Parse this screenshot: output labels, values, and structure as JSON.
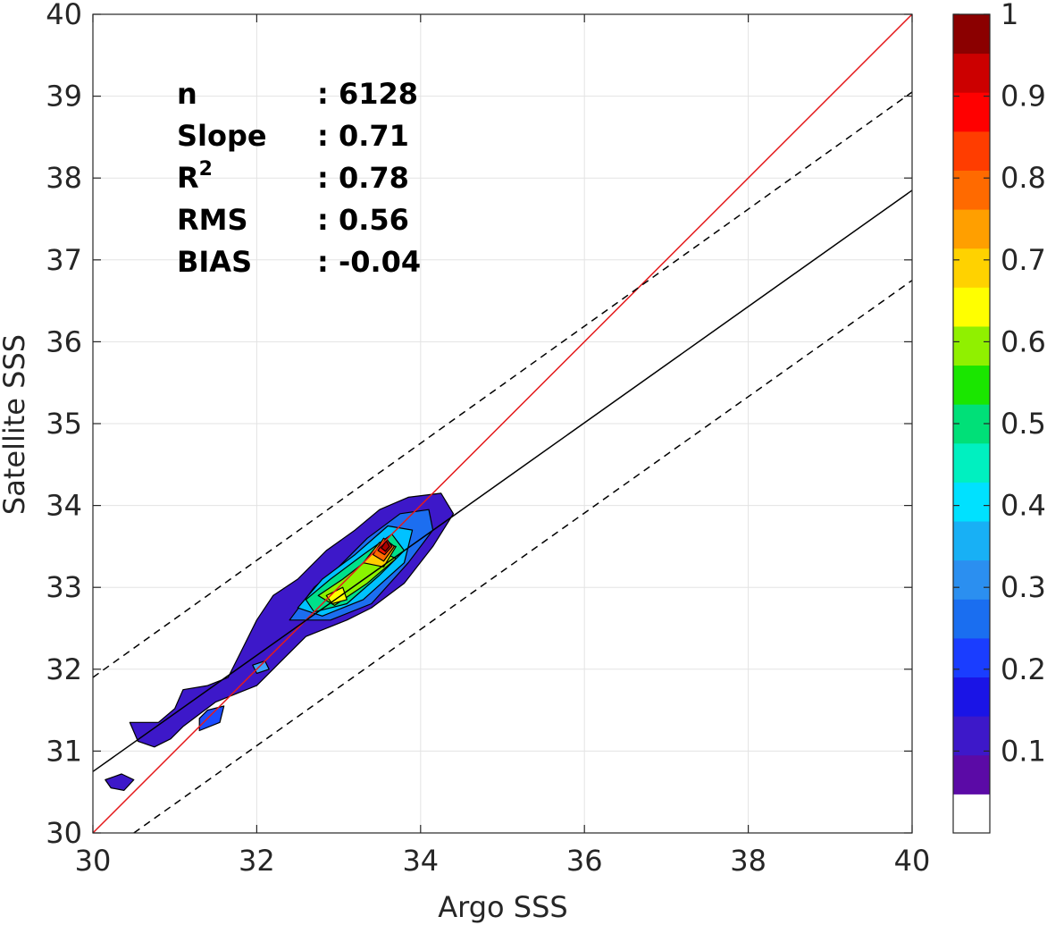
{
  "chart_data": {
    "type": "scatter",
    "subtype": "density-contour",
    "xlabel": "Argo SSS",
    "ylabel": "Satellite SSS",
    "xlim": [
      30,
      40
    ],
    "ylim": [
      30,
      40
    ],
    "xticks": [
      30,
      32,
      34,
      36,
      38,
      40
    ],
    "yticks": [
      30,
      31,
      32,
      33,
      34,
      35,
      36,
      37,
      38,
      39,
      40
    ],
    "grid": true,
    "stats": [
      {
        "label": "n",
        "value": ": 6128"
      },
      {
        "label": "Slope",
        "value": ": 0.71"
      },
      {
        "label": "R",
        "sup": "2",
        "value": ": 0.78"
      },
      {
        "label": "RMS",
        "value": ": 0.56"
      },
      {
        "label": "BIAS",
        "value": ": -0.04"
      }
    ],
    "reference_lines": [
      {
        "role": "one-to-one",
        "color": "#e41a1c",
        "x": [
          30,
          40
        ],
        "y": [
          30,
          40
        ]
      },
      {
        "role": "regression",
        "color": "#000000",
        "x": [
          30,
          40
        ],
        "y": [
          30.75,
          37.85
        ]
      },
      {
        "role": "upper-bound",
        "color": "#000000",
        "style": "dashed",
        "x": [
          30,
          40
        ],
        "y": [
          31.9,
          39.05
        ]
      },
      {
        "role": "lower-bound",
        "color": "#000000",
        "style": "dashed",
        "x": [
          30.5,
          40
        ],
        "y": [
          30,
          36.75
        ]
      }
    ],
    "density_contours": [
      {
        "level": 0.05,
        "color": "#3d18c9",
        "points": [
          [
            30.15,
            30.65
          ],
          [
            30.35,
            30.72
          ],
          [
            30.5,
            30.65
          ],
          [
            30.38,
            30.52
          ],
          [
            30.22,
            30.55
          ]
        ]
      },
      {
        "level": 0.05,
        "color": "#3d18c9",
        "points": [
          [
            30.45,
            31.35
          ],
          [
            30.8,
            31.35
          ],
          [
            31.0,
            31.52
          ],
          [
            31.1,
            31.75
          ],
          [
            31.4,
            31.8
          ],
          [
            31.65,
            31.9
          ],
          [
            31.8,
            32.2
          ],
          [
            32.0,
            32.6
          ],
          [
            32.2,
            32.9
          ],
          [
            32.5,
            33.1
          ],
          [
            32.85,
            33.45
          ],
          [
            33.2,
            33.7
          ],
          [
            33.5,
            33.95
          ],
          [
            33.85,
            34.1
          ],
          [
            34.25,
            34.15
          ],
          [
            34.4,
            33.9
          ],
          [
            34.15,
            33.5
          ],
          [
            33.8,
            33.05
          ],
          [
            33.4,
            32.75
          ],
          [
            33.1,
            32.6
          ],
          [
            32.6,
            32.4
          ],
          [
            32.3,
            32.1
          ],
          [
            32.0,
            31.8
          ],
          [
            31.5,
            31.6
          ],
          [
            31.1,
            31.3
          ],
          [
            30.95,
            31.15
          ],
          [
            30.75,
            31.05
          ],
          [
            30.55,
            31.12
          ]
        ]
      },
      {
        "level": 0.2,
        "color": "#1c4cff",
        "points": [
          [
            31.3,
            31.25
          ],
          [
            31.55,
            31.35
          ],
          [
            31.6,
            31.55
          ],
          [
            31.4,
            31.5
          ],
          [
            31.3,
            31.4
          ]
        ]
      },
      {
        "level": 0.25,
        "color": "#3da4ff",
        "points": [
          [
            31.95,
            32.05
          ],
          [
            32.1,
            32.1
          ],
          [
            32.15,
            32.0
          ],
          [
            32.0,
            31.95
          ]
        ]
      },
      {
        "level": 0.2,
        "color": "#1c6ef0",
        "points": [
          [
            32.4,
            32.6
          ],
          [
            32.7,
            33.0
          ],
          [
            33.0,
            33.25
          ],
          [
            33.35,
            33.6
          ],
          [
            33.75,
            33.9
          ],
          [
            34.1,
            33.95
          ],
          [
            34.15,
            33.7
          ],
          [
            33.85,
            33.3
          ],
          [
            33.4,
            32.8
          ],
          [
            32.9,
            32.6
          ]
        ]
      },
      {
        "level": 0.35,
        "color": "#00c2ff",
        "points": [
          [
            32.5,
            32.75
          ],
          [
            32.8,
            33.1
          ],
          [
            33.2,
            33.4
          ],
          [
            33.6,
            33.75
          ],
          [
            33.9,
            33.7
          ],
          [
            33.8,
            33.3
          ],
          [
            33.3,
            32.85
          ],
          [
            32.8,
            32.65
          ]
        ]
      },
      {
        "level": 0.45,
        "color": "#00e08a",
        "points": [
          [
            32.6,
            32.85
          ],
          [
            32.9,
            33.1
          ],
          [
            33.3,
            33.4
          ],
          [
            33.65,
            33.65
          ],
          [
            33.8,
            33.45
          ],
          [
            33.5,
            33.15
          ],
          [
            33.1,
            32.8
          ],
          [
            32.7,
            32.7
          ]
        ]
      },
      {
        "level": 0.55,
        "color": "#8af400",
        "points": [
          [
            32.75,
            32.9
          ],
          [
            33.05,
            33.1
          ],
          [
            33.5,
            33.45
          ],
          [
            33.7,
            33.35
          ],
          [
            33.35,
            33.05
          ],
          [
            32.95,
            32.78
          ]
        ]
      },
      {
        "level": 0.65,
        "color": "#ffff00",
        "points": [
          [
            32.85,
            32.9
          ],
          [
            33.05,
            33.0
          ],
          [
            33.1,
            32.85
          ],
          [
            32.92,
            32.8
          ]
        ]
      },
      {
        "level": 0.7,
        "color": "#ffcc00",
        "points": [
          [
            33.3,
            33.3
          ],
          [
            33.5,
            33.55
          ],
          [
            33.7,
            33.5
          ],
          [
            33.55,
            33.25
          ]
        ]
      },
      {
        "level": 0.8,
        "color": "#ff6a00",
        "points": [
          [
            33.42,
            33.4
          ],
          [
            33.55,
            33.6
          ],
          [
            33.68,
            33.5
          ],
          [
            33.55,
            33.32
          ]
        ]
      },
      {
        "level": 0.9,
        "color": "#ff1500",
        "points": [
          [
            33.48,
            33.45
          ],
          [
            33.58,
            33.6
          ],
          [
            33.65,
            33.5
          ],
          [
            33.56,
            33.4
          ]
        ]
      },
      {
        "level": 1.0,
        "color": "#aa0000",
        "points": [
          [
            33.52,
            33.48
          ],
          [
            33.58,
            33.57
          ],
          [
            33.62,
            33.5
          ],
          [
            33.57,
            33.44
          ]
        ]
      }
    ],
    "colorbar": {
      "ticks": [
        0.1,
        0.2,
        0.3,
        0.4,
        0.5,
        0.6,
        0.7,
        0.8,
        0.9,
        1
      ],
      "tick_labels": [
        "0.1",
        "0.2",
        "0.3",
        "0.4",
        "0.5",
        "0.6",
        "0.7",
        "0.8",
        "0.9",
        "1"
      ],
      "range": [
        0,
        1
      ],
      "colors": [
        "#ffffff",
        "#5b0aa6",
        "#3d18c9",
        "#1a14e6",
        "#1a3dff",
        "#1a6ef0",
        "#2b8ff0",
        "#18b0f5",
        "#00e1ff",
        "#00f0c0",
        "#00e078",
        "#1ae600",
        "#90f000",
        "#ffff00",
        "#ffd200",
        "#ff9f00",
        "#ff6a00",
        "#ff3d00",
        "#ff0000",
        "#cc0000",
        "#8b0000"
      ]
    }
  }
}
